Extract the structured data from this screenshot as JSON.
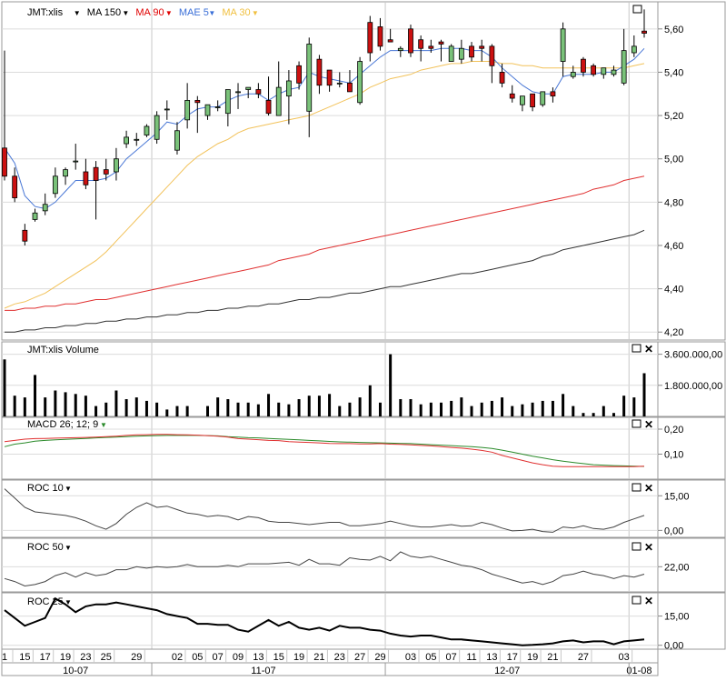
{
  "price_panel": {
    "legend": [
      {
        "label": "JMT:xlis",
        "color": "#000000",
        "dropdown": true
      },
      {
        "label": "MA 150",
        "color": "#000000",
        "dropdown": true
      },
      {
        "label": "MA 90",
        "color": "#e00000",
        "dropdown": true
      },
      {
        "label": "MAE 5",
        "color": "#3a6fd8",
        "dropdown": true
      },
      {
        "label": "MA 30",
        "color": "#f0c040",
        "dropdown": true
      }
    ],
    "y_ticks": [
      "5,60",
      "5,40",
      "5,20",
      "5,00",
      "4,80",
      "4,60",
      "4,40",
      "4,20"
    ]
  },
  "volume_panel": {
    "title": "JMT:xlis Volume",
    "y_ticks": [
      "3.600.000,00",
      "1.800.000,00"
    ]
  },
  "macd_panel": {
    "title": "MACD 26; 12; 9",
    "y_ticks": [
      "0,20",
      "0,10"
    ]
  },
  "roc10_panel": {
    "title": "ROC 10",
    "y_ticks": [
      "15,00",
      "0,00"
    ]
  },
  "roc50_panel": {
    "title": "ROC 50",
    "y_ticks": [
      "22,00"
    ]
  },
  "roc25_panel": {
    "title": "ROC 25",
    "y_ticks": [
      "15,00",
      "0,00"
    ]
  },
  "x_axis": {
    "day_labels": [
      "1",
      "15",
      "17",
      "19",
      "23",
      "25",
      "29",
      "02",
      "05",
      "07",
      "09",
      "13",
      "15",
      "19",
      "21",
      "23",
      "27",
      "29",
      "03",
      "05",
      "07",
      "11",
      "13",
      "17",
      "19",
      "21",
      "27",
      "03"
    ],
    "month_labels": [
      "10-07",
      "11-07",
      "12-07",
      "01-08"
    ]
  },
  "colors": {
    "up": "#7ac27a",
    "down": "#cc1111",
    "ma150": "#333333",
    "ma90": "#e03030",
    "mae5": "#4a78d6",
    "ma30": "#f2c25a",
    "macd": "#e03030",
    "signal": "#2a8a2a"
  },
  "chart_data": {
    "type": "candlestick",
    "ylim": [
      4.18,
      5.7
    ],
    "candles": [
      [
        5.05,
        4.92,
        5.5,
        4.9
      ],
      [
        4.92,
        4.82,
        4.96,
        4.8
      ],
      [
        4.67,
        4.62,
        4.7,
        4.6
      ],
      [
        4.72,
        4.75,
        4.77,
        4.71
      ],
      [
        4.76,
        4.79,
        4.84,
        4.74
      ],
      [
        4.84,
        4.92,
        4.96,
        4.82
      ],
      [
        4.92,
        4.95,
        4.96,
        4.88
      ],
      [
        4.99,
        4.99,
        5.07,
        4.95
      ],
      [
        4.94,
        4.88,
        5.0,
        4.86
      ],
      [
        4.96,
        4.9,
        4.99,
        4.72
      ],
      [
        4.95,
        4.93,
        5.0,
        4.9
      ],
      [
        4.94,
        5.0,
        5.05,
        4.9
      ],
      [
        5.07,
        5.1,
        5.13,
        5.05
      ],
      [
        5.09,
        5.09,
        5.12,
        5.06
      ],
      [
        5.11,
        5.15,
        5.16,
        5.1
      ],
      [
        5.09,
        5.2,
        5.22,
        5.07
      ],
      [
        5.23,
        5.23,
        5.27,
        5.18
      ],
      [
        5.04,
        5.13,
        5.17,
        5.02
      ],
      [
        5.18,
        5.27,
        5.35,
        5.14
      ],
      [
        5.27,
        5.26,
        5.29,
        5.12
      ],
      [
        5.2,
        5.25,
        5.25,
        5.18
      ],
      [
        5.24,
        5.24,
        5.27,
        5.22
      ],
      [
        5.21,
        5.32,
        5.32,
        5.15
      ],
      [
        5.31,
        5.31,
        5.35,
        5.23
      ],
      [
        5.32,
        5.33,
        5.33,
        5.28
      ],
      [
        5.32,
        5.3,
        5.35,
        5.28
      ],
      [
        5.27,
        5.21,
        5.38,
        5.2
      ],
      [
        5.2,
        5.33,
        5.45,
        5.2
      ],
      [
        5.29,
        5.36,
        5.41,
        5.16
      ],
      [
        5.43,
        5.35,
        5.45,
        5.32
      ],
      [
        5.22,
        5.53,
        5.56,
        5.1
      ],
      [
        5.46,
        5.34,
        5.48,
        5.3
      ],
      [
        5.41,
        5.34,
        5.4,
        5.31
      ],
      [
        5.35,
        5.35,
        5.4,
        5.33
      ],
      [
        5.35,
        5.31,
        5.41,
        5.31
      ],
      [
        5.26,
        5.45,
        5.47,
        5.25
      ],
      [
        5.63,
        5.49,
        5.66,
        5.45
      ],
      [
        5.61,
        5.52,
        5.65,
        5.5
      ],
      [
        5.55,
        5.54,
        5.6,
        5.54
      ],
      [
        5.5,
        5.51,
        5.52,
        5.47
      ],
      [
        5.6,
        5.49,
        5.62,
        5.47
      ],
      [
        5.55,
        5.51,
        5.57,
        5.45
      ],
      [
        5.52,
        5.51,
        5.55,
        5.49
      ],
      [
        5.54,
        5.53,
        5.55,
        5.45
      ],
      [
        5.45,
        5.52,
        5.53,
        5.45
      ],
      [
        5.46,
        5.51,
        5.55,
        5.44
      ],
      [
        5.52,
        5.47,
        5.54,
        5.45
      ],
      [
        5.52,
        5.51,
        5.55,
        5.45
      ],
      [
        5.52,
        5.43,
        5.53,
        5.35
      ],
      [
        5.4,
        5.35,
        5.44,
        5.33
      ],
      [
        5.3,
        5.28,
        5.34,
        5.26
      ],
      [
        5.25,
        5.29,
        5.29,
        5.22
      ],
      [
        5.3,
        5.24,
        5.3,
        5.22
      ],
      [
        5.25,
        5.31,
        5.31,
        5.24
      ],
      [
        5.31,
        5.29,
        5.33,
        5.26
      ],
      [
        5.45,
        5.6,
        5.63,
        5.38
      ],
      [
        5.38,
        5.4,
        5.43,
        5.37
      ],
      [
        5.46,
        5.4,
        5.47,
        5.38
      ],
      [
        5.43,
        5.39,
        5.44,
        5.38
      ],
      [
        5.39,
        5.42,
        5.42,
        5.37
      ],
      [
        5.39,
        5.41,
        5.43,
        5.38
      ],
      [
        5.35,
        5.5,
        5.6,
        5.34
      ],
      [
        5.49,
        5.52,
        5.57,
        5.47
      ],
      [
        5.59,
        5.58,
        5.69,
        5.56
      ]
    ],
    "ma150": [
      4.2,
      4.2,
      4.21,
      4.21,
      4.22,
      4.22,
      4.23,
      4.23,
      4.24,
      4.24,
      4.25,
      4.25,
      4.26,
      4.26,
      4.27,
      4.27,
      4.28,
      4.28,
      4.29,
      4.29,
      4.3,
      4.3,
      4.31,
      4.31,
      4.32,
      4.32,
      4.33,
      4.33,
      4.34,
      4.35,
      4.35,
      4.36,
      4.36,
      4.37,
      4.38,
      4.38,
      4.39,
      4.4,
      4.41,
      4.41,
      4.42,
      4.43,
      4.44,
      4.45,
      4.46,
      4.47,
      4.47,
      4.48,
      4.49,
      4.5,
      4.51,
      4.52,
      4.53,
      4.55,
      4.56,
      4.58,
      4.59,
      4.6,
      4.61,
      4.62,
      4.63,
      4.64,
      4.65,
      4.67
    ],
    "ma90": [
      4.3,
      4.3,
      4.31,
      4.31,
      4.32,
      4.32,
      4.33,
      4.33,
      4.34,
      4.35,
      4.35,
      4.36,
      4.37,
      4.38,
      4.39,
      4.4,
      4.41,
      4.42,
      4.43,
      4.44,
      4.45,
      4.46,
      4.47,
      4.48,
      4.49,
      4.5,
      4.51,
      4.53,
      4.54,
      4.55,
      4.56,
      4.58,
      4.59,
      4.6,
      4.61,
      4.62,
      4.63,
      4.64,
      4.65,
      4.66,
      4.67,
      4.68,
      4.69,
      4.7,
      4.71,
      4.72,
      4.73,
      4.74,
      4.75,
      4.76,
      4.77,
      4.78,
      4.79,
      4.8,
      4.81,
      4.82,
      4.83,
      4.84,
      4.86,
      4.87,
      4.88,
      4.9,
      4.91,
      4.92
    ],
    "ma30": [
      4.31,
      4.33,
      4.34,
      4.36,
      4.38,
      4.41,
      4.44,
      4.47,
      4.5,
      4.53,
      4.57,
      4.62,
      4.67,
      4.72,
      4.77,
      4.82,
      4.87,
      4.92,
      4.97,
      5.01,
      5.04,
      5.07,
      5.09,
      5.12,
      5.14,
      5.15,
      5.16,
      5.17,
      5.18,
      5.19,
      5.2,
      5.22,
      5.24,
      5.26,
      5.28,
      5.3,
      5.33,
      5.35,
      5.37,
      5.38,
      5.39,
      5.41,
      5.42,
      5.43,
      5.44,
      5.44,
      5.45,
      5.45,
      5.45,
      5.44,
      5.44,
      5.43,
      5.43,
      5.42,
      5.42,
      5.42,
      5.42,
      5.42,
      5.42,
      5.42,
      5.42,
      5.42,
      5.43,
      5.44
    ],
    "mae5": [
      5.05,
      4.98,
      4.83,
      4.78,
      4.77,
      4.8,
      4.85,
      4.9,
      4.9,
      4.9,
      4.91,
      4.94,
      5.0,
      5.04,
      5.08,
      5.12,
      5.17,
      5.16,
      5.2,
      5.23,
      5.24,
      5.24,
      5.27,
      5.29,
      5.3,
      5.3,
      5.27,
      5.3,
      5.32,
      5.33,
      5.4,
      5.38,
      5.37,
      5.36,
      5.35,
      5.39,
      5.43,
      5.47,
      5.5,
      5.5,
      5.5,
      5.5,
      5.5,
      5.51,
      5.51,
      5.51,
      5.5,
      5.5,
      5.47,
      5.42,
      5.38,
      5.34,
      5.31,
      5.3,
      5.3,
      5.38,
      5.39,
      5.39,
      5.39,
      5.4,
      5.4,
      5.43,
      5.46,
      5.51
    ],
    "volume_max": 4000000,
    "volume": [
      3300000,
      1200000,
      1100000,
      2400000,
      1100000,
      1500000,
      1400000,
      1300000,
      1200000,
      600000,
      800000,
      1500000,
      1000000,
      1100000,
      900000,
      800000,
      400000,
      600000,
      600000,
      0,
      600000,
      1100000,
      1000000,
      800000,
      800000,
      700000,
      1300000,
      800000,
      700000,
      1000000,
      1200000,
      1200000,
      1300000,
      600000,
      800000,
      1100000,
      1800000,
      800000,
      3600000,
      1000000,
      1000000,
      700000,
      800000,
      800000,
      900000,
      1100000,
      600000,
      800000,
      900000,
      1100000,
      600000,
      700000,
      800000,
      900000,
      900000,
      1300000,
      600000,
      200000,
      200000,
      600000,
      200000,
      1200000,
      1100000,
      2500000
    ],
    "macd_ylim": [
      0.0,
      0.24
    ],
    "macd": [
      0.15,
      0.155,
      0.16,
      0.162,
      0.163,
      0.164,
      0.165,
      0.166,
      0.167,
      0.168,
      0.17,
      0.172,
      0.175,
      0.177,
      0.178,
      0.179,
      0.179,
      0.178,
      0.177,
      0.176,
      0.174,
      0.172,
      0.168,
      0.162,
      0.16,
      0.158,
      0.155,
      0.154,
      0.15,
      0.148,
      0.147,
      0.145,
      0.143,
      0.142,
      0.142,
      0.141,
      0.141,
      0.142,
      0.14,
      0.139,
      0.137,
      0.135,
      0.133,
      0.13,
      0.127,
      0.124,
      0.12,
      0.115,
      0.108,
      0.095,
      0.085,
      0.075,
      0.065,
      0.058,
      0.052,
      0.05,
      0.05,
      0.05,
      0.05,
      0.05,
      0.05,
      0.05,
      0.05,
      0.052
    ],
    "signal": [
      0.13,
      0.14,
      0.145,
      0.152,
      0.155,
      0.157,
      0.159,
      0.161,
      0.163,
      0.165,
      0.167,
      0.168,
      0.17,
      0.172,
      0.173,
      0.174,
      0.175,
      0.175,
      0.175,
      0.175,
      0.174,
      0.173,
      0.17,
      0.168,
      0.166,
      0.165,
      0.163,
      0.161,
      0.159,
      0.157,
      0.155,
      0.153,
      0.151,
      0.149,
      0.148,
      0.147,
      0.146,
      0.145,
      0.144,
      0.143,
      0.142,
      0.14,
      0.138,
      0.136,
      0.134,
      0.132,
      0.13,
      0.127,
      0.123,
      0.116,
      0.108,
      0.1,
      0.092,
      0.085,
      0.078,
      0.072,
      0.067,
      0.062,
      0.058,
      0.056,
      0.054,
      0.053,
      0.052,
      0.051
    ],
    "roc10_ylim": [
      -3.0,
      21.0
    ],
    "roc10": [
      18.0,
      14.0,
      10.0,
      8.0,
      7.5,
      7.0,
      6.5,
      5.5,
      4.0,
      2.0,
      0.5,
      3.0,
      7.0,
      10.0,
      12.0,
      10.0,
      10.5,
      9.0,
      7.5,
      7.0,
      6.0,
      6.5,
      6.0,
      4.5,
      6.0,
      5.5,
      4.0,
      3.5,
      3.5,
      3.0,
      2.5,
      3.0,
      3.5,
      3.5,
      2.0,
      2.0,
      2.5,
      3.0,
      4.0,
      3.0,
      2.0,
      1.5,
      1.5,
      2.0,
      2.5,
      1.8,
      2.0,
      3.5,
      2.5,
      1.0,
      -0.2,
      0.0,
      0.5,
      -0.5,
      -0.8,
      1.5,
      1.0,
      2.0,
      0.8,
      0.5,
      1.5,
      3.5,
      5.0,
      6.5
    ],
    "roc50_ylim": [
      5.0,
      40.0
    ],
    "roc50": [
      14.0,
      12.0,
      9.0,
      10.0,
      12.0,
      16.0,
      18.0,
      15.0,
      18.0,
      16.0,
      17.0,
      20.0,
      20.0,
      22.0,
      21.0,
      22.0,
      21.5,
      22.0,
      23.5,
      22.0,
      22.0,
      22.0,
      23.0,
      22.0,
      24.0,
      24.0,
      24.0,
      24.5,
      25.0,
      23.0,
      27.0,
      24.0,
      24.0,
      23.0,
      28.0,
      27.0,
      26.5,
      29.0,
      26.0,
      32.0,
      29.0,
      28.0,
      29.0,
      27.0,
      25.0,
      23.0,
      22.0,
      20.0,
      17.0,
      15.0,
      13.0,
      11.0,
      12.0,
      10.0,
      12.0,
      16.0,
      17.0,
      19.0,
      17.0,
      16.0,
      14.0,
      16.0,
      15.0,
      17.0
    ],
    "roc25_ylim": [
      -2.0,
      26.0
    ],
    "roc25": [
      18.0,
      14.0,
      10.0,
      12.0,
      14.0,
      24.0,
      21.0,
      17.0,
      20.0,
      21.0,
      21.0,
      22.0,
      21.0,
      20.0,
      19.0,
      18.0,
      16.0,
      15.0,
      14.0,
      11.0,
      11.0,
      10.5,
      10.5,
      8.0,
      7.0,
      10.0,
      13.0,
      10.0,
      12.0,
      9.0,
      8.0,
      9.0,
      7.5,
      10.0,
      9.0,
      9.0,
      8.0,
      7.5,
      6.0,
      5.0,
      4.5,
      5.0,
      5.0,
      4.0,
      3.0,
      3.0,
      2.5,
      2.0,
      1.5,
      1.0,
      0.5,
      0.0,
      0.2,
      0.5,
      1.0,
      2.0,
      2.5,
      1.5,
      2.0,
      2.0,
      0.5,
      2.0,
      2.5,
      3.0
    ]
  }
}
